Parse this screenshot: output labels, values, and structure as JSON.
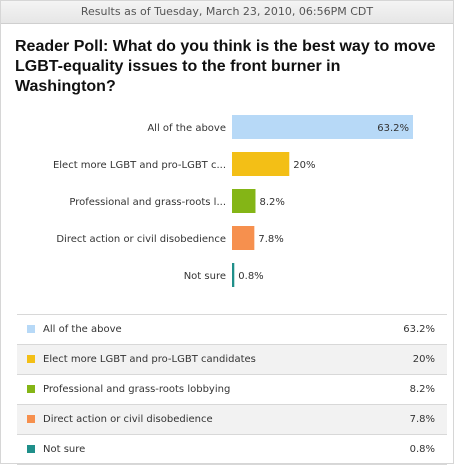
{
  "header": {
    "results_text": "Results as of Tuesday, March 23, 2010, 06:56PM CDT"
  },
  "poll": {
    "title": "Reader Poll: What do you think is the best way to move LGBT-equality issues to the front burner in Washington?"
  },
  "chart_data": {
    "type": "bar",
    "orientation": "horizontal",
    "categories": [
      "All of the above",
      "Elect more LGBT and pro-LGBT c...",
      "Professional and grass-roots l...",
      "Direct action or civil disobedience",
      "Not sure"
    ],
    "values": [
      63.2,
      20,
      8.2,
      7.8,
      0.8
    ],
    "value_labels": [
      "63.2%",
      "20%",
      "8.2%",
      "7.8%",
      "0.8%"
    ],
    "colors": [
      "#b7d9f7",
      "#f3bf16",
      "#84b516",
      "#f6904e",
      "#1f8f8a"
    ],
    "xlim": [
      0,
      63.2
    ],
    "title": "",
    "xlabel": "",
    "ylabel": "",
    "grid": false
  },
  "legend": {
    "items": [
      {
        "label": "All of the above",
        "value": "63.2%",
        "color": "#b7d9f7"
      },
      {
        "label": "Elect more LGBT and pro-LGBT candidates",
        "value": "20%",
        "color": "#f3bf16"
      },
      {
        "label": "Professional and grass-roots lobbying",
        "value": "8.2%",
        "color": "#84b516"
      },
      {
        "label": "Direct action or civil disobedience",
        "value": "7.8%",
        "color": "#f6904e"
      },
      {
        "label": "Not sure",
        "value": "0.8%",
        "color": "#1f8f8a"
      }
    ]
  }
}
